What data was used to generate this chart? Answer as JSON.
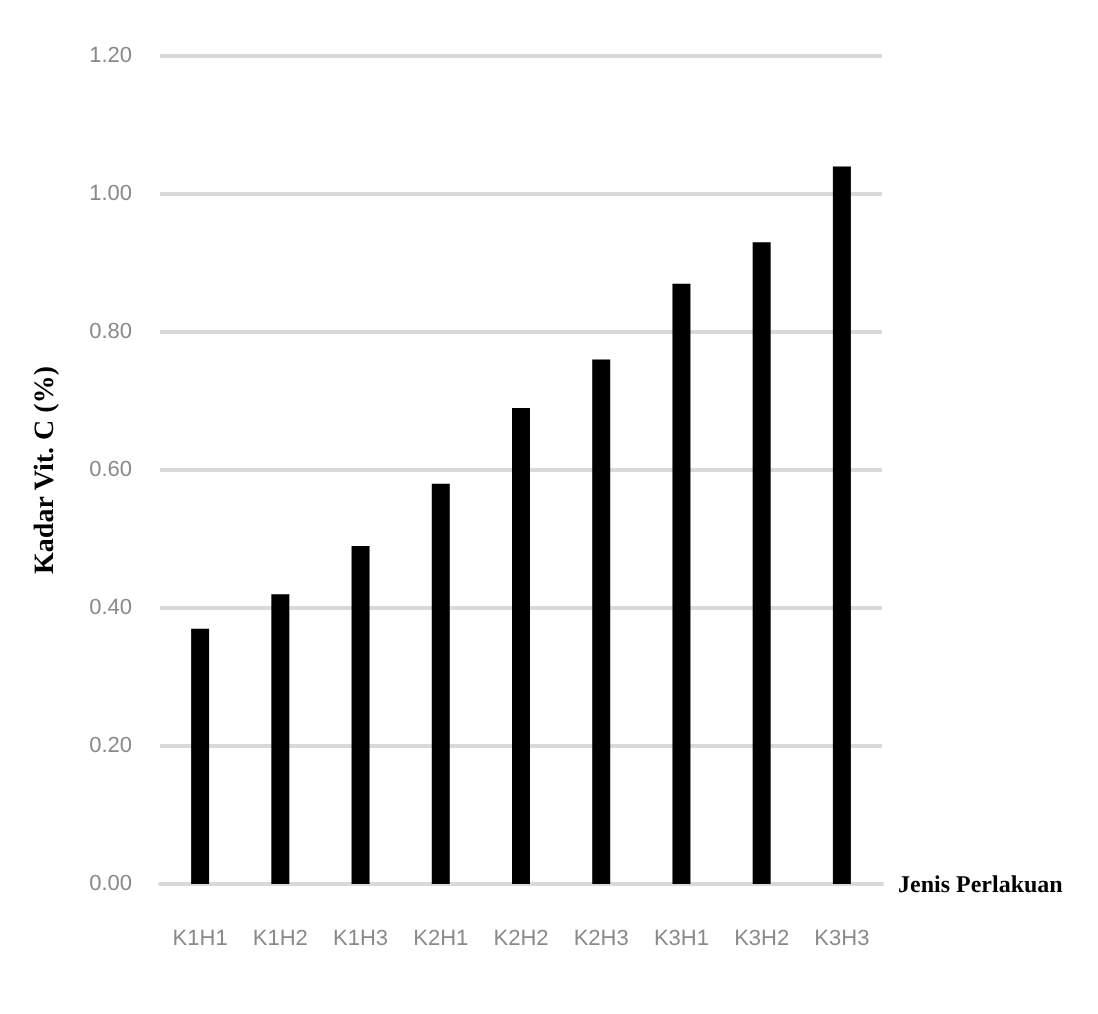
{
  "chart_data": {
    "type": "bar",
    "xlabel": "Jenis Perlakuan",
    "ylabel": "Kadar Vit. C (%)",
    "categories": [
      "K1H1",
      "K1H2",
      "K1H3",
      "K2H1",
      "K2H2",
      "K2H3",
      "K3H1",
      "K3H2",
      "K3H3"
    ],
    "values": [
      0.37,
      0.42,
      0.49,
      0.58,
      0.69,
      0.76,
      0.87,
      0.93,
      1.04
    ],
    "color": "#000000",
    "ylim": [
      0,
      1.2
    ],
    "yticks": [
      {
        "value": 0,
        "label": "0.00"
      },
      {
        "value": 0.2,
        "label": "0.20"
      },
      {
        "value": 0.4,
        "label": "0.40"
      },
      {
        "value": 0.6,
        "label": "0.60"
      },
      {
        "value": 0.8,
        "label": "0.80"
      },
      {
        "value": 1,
        "label": "1.00"
      },
      {
        "value": 1.2,
        "label": "1.20"
      }
    ],
    "grid": "y"
  }
}
